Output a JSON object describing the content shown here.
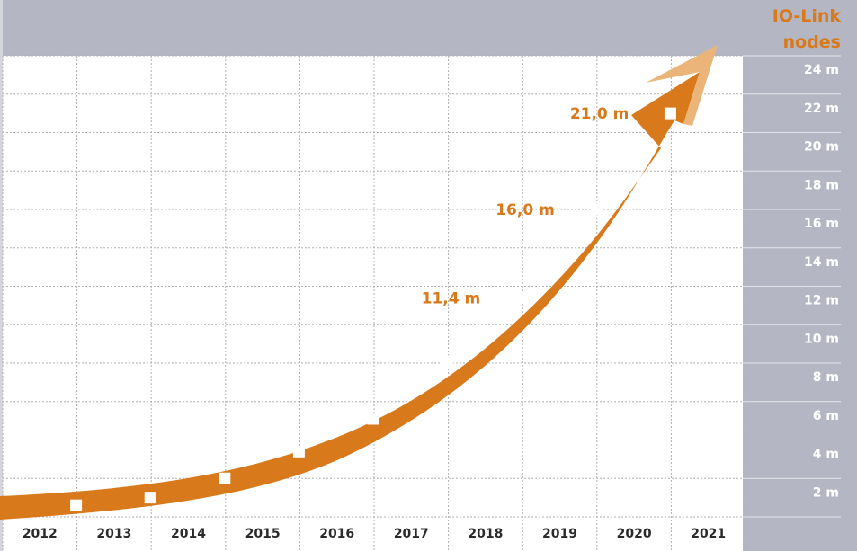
{
  "chart_data": {
    "type": "line",
    "title": "IO-Link nodes",
    "title_lines": [
      "IO-Link",
      "nodes"
    ],
    "xlabel": "",
    "ylabel": "IO-Link nodes",
    "categories": [
      "2012",
      "2013",
      "2014",
      "2015",
      "2016",
      "2017",
      "2018",
      "2019",
      "2020",
      "2021"
    ],
    "series": [
      {
        "name": "IO-Link nodes (millions)",
        "values": [
          0.6,
          1.0,
          2.0,
          3.4,
          5.1,
          8.1,
          11.4,
          16.0,
          21.0
        ]
      }
    ],
    "annotations": [
      {
        "text": "11,4 m",
        "value": 11.4,
        "point_index": 6
      },
      {
        "text": "16,0 m",
        "value": 16.0,
        "point_index": 7
      },
      {
        "text": "21,0 m",
        "value": 21.0,
        "point_index": 8
      }
    ],
    "y_ticks": [
      "2 m",
      "4 m",
      "6 m",
      "8 m",
      "10 m",
      "12 m",
      "14 m",
      "16 m",
      "18 m",
      "20 m",
      "22 m",
      "24 m"
    ],
    "ylim": [
      0,
      24
    ],
    "grid": true,
    "style": "growth arrow with square markers",
    "colors": {
      "arrow": "#d8791b",
      "arrow_tip_light": "#ebb57a",
      "panel": "#b5b6c3",
      "marker": "#ffffff",
      "grid": "#b0b0b0"
    }
  }
}
